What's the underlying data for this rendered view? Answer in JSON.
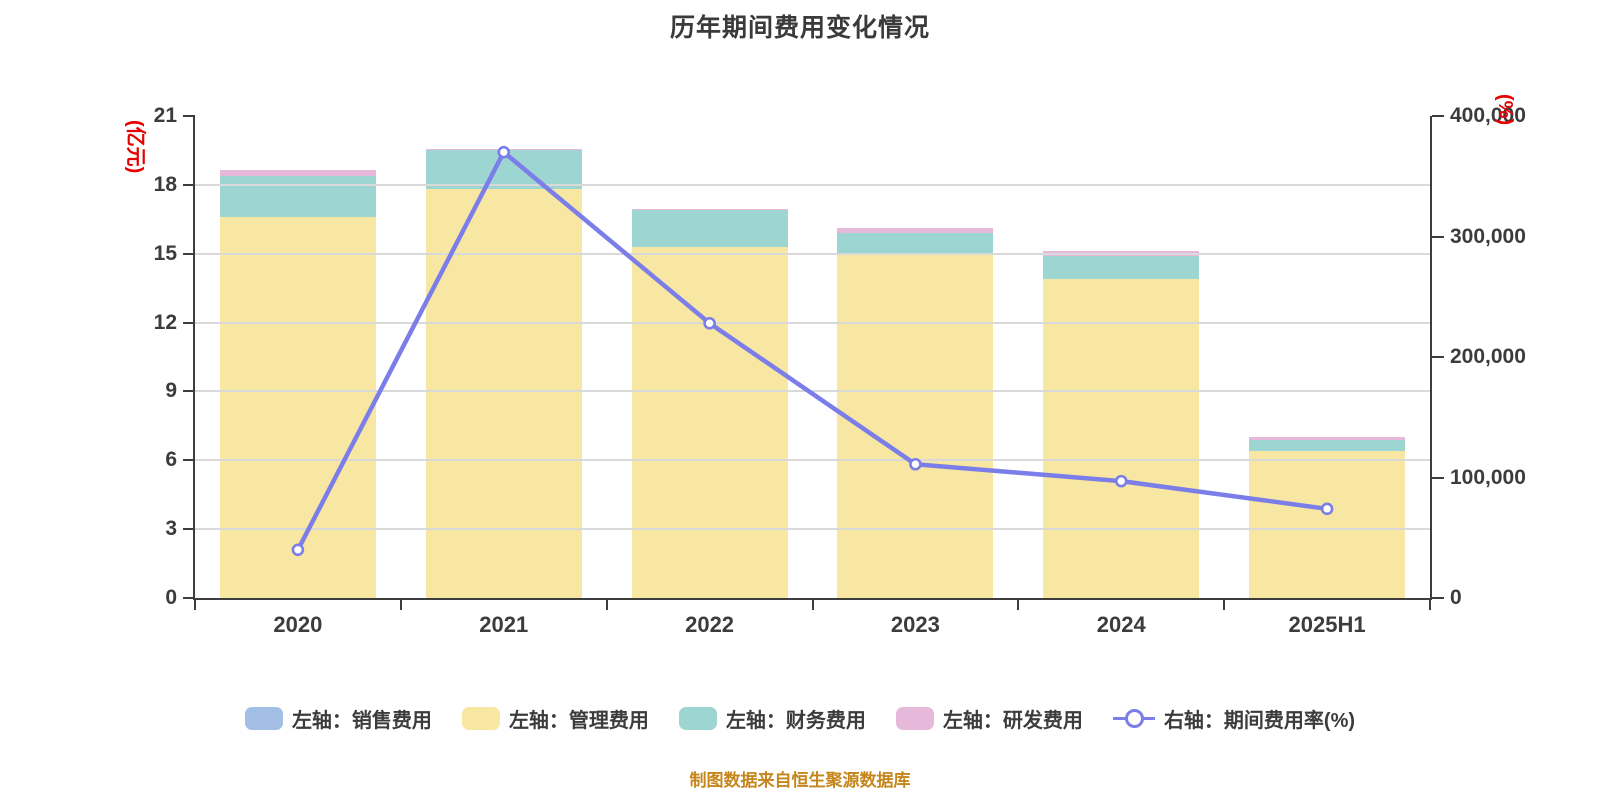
{
  "title": "历年期间费用变化情况",
  "source_note": "制图数据来自恒生聚源数据库",
  "axes": {
    "left": {
      "unit": "(亿元)",
      "unit_color": "#e60000",
      "tick_values": [
        0,
        3,
        6,
        9,
        12,
        15,
        18,
        21
      ],
      "max": 21
    },
    "right": {
      "unit": "(%)",
      "unit_color": "#e60000",
      "tick_labels": [
        "0",
        "100,000",
        "200,000",
        "300,000",
        "400,000"
      ],
      "tick_values": [
        0,
        100000,
        200000,
        300000,
        400000
      ],
      "max": 400000
    },
    "x": {
      "categories": [
        "2020",
        "2021",
        "2022",
        "2023",
        "2024",
        "2025H1"
      ]
    }
  },
  "chart_data": {
    "type": "stacked-bar+line",
    "title": "历年期间费用变化情况",
    "categories": [
      "2020",
      "2021",
      "2022",
      "2023",
      "2024",
      "2025H1"
    ],
    "series": [
      {
        "key": "sales",
        "name": "左轴：销售费用",
        "type": "bar",
        "axis": "left",
        "color": "#a3bfe6",
        "values": [
          0,
          0,
          0,
          0,
          0,
          0
        ]
      },
      {
        "key": "admin",
        "name": "左轴：管理费用",
        "type": "bar",
        "axis": "left",
        "color": "#f8e7a2",
        "values": [
          16.6,
          17.8,
          15.3,
          15.0,
          13.9,
          6.4
        ]
      },
      {
        "key": "finance",
        "name": "左轴：财务费用",
        "type": "bar",
        "axis": "left",
        "color": "#9dd5d2",
        "values": [
          1.8,
          1.7,
          1.6,
          0.9,
          1.0,
          0.5
        ]
      },
      {
        "key": "rnd",
        "name": "左轴：研发费用",
        "type": "bar",
        "axis": "left",
        "color": "#e6b8da",
        "values": [
          0.25,
          0.05,
          0.05,
          0.2,
          0.2,
          0.1
        ]
      },
      {
        "key": "expense_ratio",
        "name": "右轴：期间费用率(%)",
        "type": "line",
        "axis": "right",
        "color": "#7b7ee8",
        "values": [
          40000,
          370000,
          228000,
          111000,
          97000,
          74000
        ]
      }
    ],
    "ylim_left": [
      0,
      21
    ],
    "ylim_right": [
      0,
      400000
    ],
    "grid": true,
    "legend_position": "bottom"
  },
  "colors": {
    "axis": "#3d3d3d",
    "grid": "#d9d9d9",
    "text": "#3c3c3c",
    "marker_fill": "#ffffff"
  }
}
